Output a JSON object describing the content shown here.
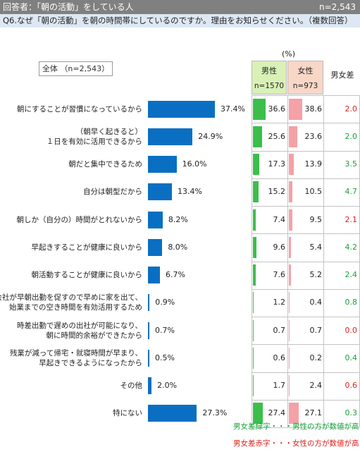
{
  "header": {
    "respondents": "回答者：「朝の活動」をしている人",
    "n": "n=2,543",
    "question": "Q6.なぜ「朝の活動」を朝の時間帯にしているのですか。理由をお知らせください。（複数回答）"
  },
  "unit": "(%)",
  "total_label": "全体 （n=2,543）",
  "columns": {
    "male": "男性",
    "male_n": "n=1570",
    "female": "女性",
    "female_n": "n=973",
    "diff": "男女差"
  },
  "legend": {
    "green": "男女差緑字・・・男性の方が数値が高い",
    "red": "男女差赤字・・・女性の方が数値が高い"
  },
  "colors": {
    "bar": "#0a6fc2",
    "male_bar": "#3bbf4a",
    "female_bar": "#f4a1a7",
    "green_text": "#18a23a",
    "red_text": "#e0201a"
  },
  "chart_data": {
    "type": "bar",
    "orientation": "horizontal",
    "categories": [
      [
        "朝にすることが習慣になっているから"
      ],
      [
        "（朝早く起きると）",
        "１日を有効に活用できるから"
      ],
      [
        "朝だと集中できるため"
      ],
      [
        "自分は朝型だから"
      ],
      [
        "朝しか（自分の）時間がとれないから"
      ],
      [
        "早起きすることが健康に良いから"
      ],
      [
        "朝活動することが健康に良いから"
      ],
      [
        "会社が早朝出勤を促すので早めに家を出て、",
        "始業までの空き時間を有効活用するため"
      ],
      [
        "時差出勤で遅めの出社が可能になり、",
        "朝に時間的余裕ができたから"
      ],
      [
        "残業が減って帰宅・就寝時間が早まり、",
        "早起きできるようになったから"
      ],
      [
        "その他"
      ],
      [
        "特にない"
      ]
    ],
    "values": [
      37.4,
      24.9,
      16.0,
      13.4,
      8.2,
      8.0,
      6.7,
      0.9,
      0.7,
      0.5,
      2.0,
      27.3
    ],
    "value_labels": [
      "37.4%",
      "24.9%",
      "16.0%",
      "13.4%",
      "8.2%",
      "8.0%",
      "6.7%",
      "0.9%",
      "0.7%",
      "0.5%",
      "2.0%",
      "27.3%"
    ],
    "male": [
      36.6,
      25.6,
      17.3,
      15.2,
      7.4,
      9.6,
      7.6,
      1.2,
      0.7,
      0.6,
      1.7,
      27.4
    ],
    "male_labels": [
      "36.6",
      "25.6",
      "17.3",
      "15.2",
      "7.4",
      "9.6",
      "7.6",
      "1.2",
      "0.7",
      "0.6",
      "1.7",
      "27.4"
    ],
    "female": [
      38.6,
      23.6,
      13.9,
      10.5,
      9.5,
      5.4,
      5.2,
      0.4,
      0.7,
      0.2,
      2.4,
      27.1
    ],
    "female_labels": [
      "38.6",
      "23.6",
      "13.9",
      "10.5",
      "9.5",
      "5.4",
      "5.2",
      "0.4",
      "0.7",
      "0.2",
      "2.4",
      "27.1"
    ],
    "diff": [
      2.0,
      2.0,
      3.5,
      4.7,
      2.1,
      4.2,
      2.4,
      0.8,
      0.0,
      0.4,
      0.6,
      0.3
    ],
    "diff_labels": [
      "2.0",
      "2.0",
      "3.5",
      "4.7",
      "2.1",
      "4.2",
      "2.4",
      "0.8",
      "0.0",
      "0.4",
      "0.6",
      "0.3"
    ],
    "diff_higher": [
      "female",
      "male",
      "male",
      "male",
      "female",
      "male",
      "male",
      "male",
      "female",
      "male",
      "female",
      "male"
    ]
  }
}
